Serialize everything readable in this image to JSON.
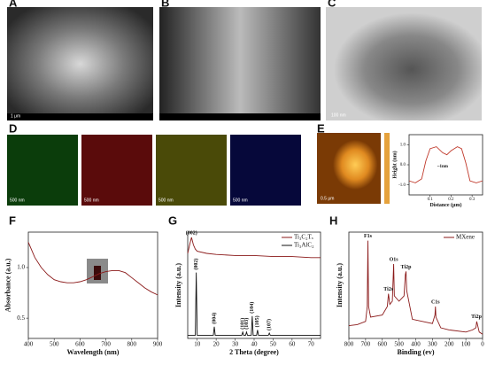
{
  "panels": {
    "labels": [
      "A",
      "B",
      "C",
      "D",
      "E",
      "F",
      "G",
      "H"
    ],
    "scale_bars": {
      "A": "1 μm",
      "C": "100 nm",
      "D": [
        "500 nm",
        "500 nm",
        "500 nm",
        "500 nm"
      ],
      "E": "0.5 μm"
    }
  },
  "chart_data": [
    {
      "type": "line",
      "x_label": "Distance (μm)",
      "y_label": "Height (nm)",
      "xlim": [
        0,
        0.35
      ],
      "xticks": [
        0.1,
        0.2,
        0.3
      ],
      "ylim": [
        -1.5,
        1.5
      ],
      "yticks": [
        {
          "value": -1,
          "label": "-1.0"
        },
        {
          "value": 0,
          "label": "0.0"
        },
        {
          "value": 1,
          "label": "1.0"
        }
      ],
      "x": [
        0,
        0.03,
        0.06,
        0.08,
        0.1,
        0.13,
        0.16,
        0.18,
        0.2,
        0.23,
        0.25,
        0.27,
        0.29,
        0.32,
        0.35
      ],
      "series": [
        {
          "name": "Height",
          "color": "#c0392b",
          "values": [
            -0.8,
            -0.9,
            -0.7,
            0.2,
            0.8,
            0.9,
            0.6,
            0.5,
            0.7,
            0.9,
            0.8,
            0.1,
            -0.8,
            -0.9,
            -0.8
          ]
        }
      ],
      "annotations": [
        {
          "text": "~1nm",
          "x": 0.16,
          "y": -0.3
        }
      ]
    },
    {
      "type": "line",
      "x_label": "Wavelength (nm)",
      "y_label": "Absorbance (a.u.)",
      "xlim": [
        400,
        900
      ],
      "xticks": [
        400,
        500,
        600,
        700,
        800,
        900
      ],
      "ylim": [
        0.3,
        1.35
      ],
      "yticks": [
        0.5,
        {
          "value": 1,
          "label": "1.0"
        }
      ],
      "x": [
        400,
        425,
        450,
        475,
        500,
        525,
        550,
        575,
        600,
        625,
        650,
        675,
        700,
        725,
        750,
        775,
        800,
        825,
        850,
        875,
        900
      ],
      "series": [
        {
          "name": "Absorbance",
          "color": "#8b1a1a",
          "values": [
            1.25,
            1.1,
            1.0,
            0.93,
            0.88,
            0.86,
            0.85,
            0.85,
            0.86,
            0.88,
            0.91,
            0.94,
            0.96,
            0.97,
            0.97,
            0.95,
            0.9,
            0.85,
            0.8,
            0.76,
            0.73
          ]
        }
      ]
    },
    {
      "type": "line",
      "x_label": "2 Theta (degree)",
      "y_label": "Intensity (a.u.)",
      "xlim": [
        5,
        75
      ],
      "xticks": [
        10,
        20,
        30,
        40,
        50,
        60,
        70
      ],
      "ylim": [
        0,
        100
      ],
      "series": [
        {
          "name": "Ti₃C₂Tₓ",
          "color": "#8b1a1a",
          "x": [
            5,
            6,
            7,
            8,
            9,
            10,
            15,
            20,
            30,
            40,
            50,
            60,
            70,
            75
          ],
          "values": [
            80,
            88,
            95,
            88,
            84,
            82,
            80,
            79,
            78,
            78,
            77,
            77,
            76,
            76
          ]
        },
        {
          "name": "Ti₃AlC₂",
          "color": "#111111",
          "x": [
            5,
            9,
            9.5,
            10,
            18.5,
            19,
            19.5,
            33.5,
            34,
            34.5,
            35.5,
            36,
            36.5,
            38.5,
            39,
            39.5,
            41.3,
            41.8,
            42.3,
            47.5,
            48,
            48.5,
            60,
            70,
            75
          ],
          "values": [
            3,
            3,
            62,
            3,
            3,
            11,
            3,
            3,
            6,
            3,
            3,
            6,
            3,
            3,
            21,
            3,
            3,
            8,
            3,
            3,
            5,
            3,
            3,
            3,
            3
          ]
        }
      ],
      "annotations": [
        {
          "text": "(002)",
          "x": 7,
          "y": 95
        },
        {
          "text": "(002)",
          "x": 9.5,
          "y": 62
        },
        {
          "text": "(004)",
          "x": 19,
          "y": 11
        },
        {
          "text": "(101)",
          "x": 34,
          "y": 6
        },
        {
          "text": "(103)",
          "x": 36,
          "y": 6
        },
        {
          "text": "(104)",
          "x": 39,
          "y": 21
        },
        {
          "text": "(105)",
          "x": 41.8,
          "y": 8
        },
        {
          "text": "(107)",
          "x": 48,
          "y": 5
        }
      ]
    },
    {
      "type": "line",
      "x_label": "Binding (ev)",
      "y_label": "Intensity (a.u.)",
      "xlim": [
        800,
        0
      ],
      "xticks": [
        800,
        700,
        600,
        500,
        400,
        300,
        200,
        100,
        0
      ],
      "ylim": [
        0,
        100
      ],
      "x": [
        800,
        750,
        700,
        690,
        686,
        682,
        670,
        600,
        570,
        563,
        555,
        540,
        532,
        528,
        500,
        470,
        462,
        458,
        454,
        420,
        300,
        285,
        282,
        279,
        250,
        200,
        100,
        60,
        40,
        35,
        20,
        0
      ],
      "series": [
        {
          "name": "MXene",
          "color": "#8b1a1a",
          "values": [
            12,
            13,
            16,
            30,
            92,
            30,
            20,
            22,
            30,
            42,
            32,
            35,
            70,
            40,
            35,
            40,
            60,
            63,
            45,
            18,
            14,
            22,
            30,
            20,
            10,
            8,
            6,
            8,
            10,
            16,
            6,
            4
          ]
        }
      ],
      "annotations": [
        {
          "text": "F1s",
          "x": 686,
          "y": 92
        },
        {
          "text": "Ti2s",
          "x": 563,
          "y": 42
        },
        {
          "text": "O1s",
          "x": 532,
          "y": 70
        },
        {
          "text": "Ti2p",
          "x": 458,
          "y": 63
        },
        {
          "text": "C1s",
          "x": 282,
          "y": 30
        },
        {
          "text": "Ti2p",
          "x": 37,
          "y": 16
        }
      ]
    }
  ]
}
